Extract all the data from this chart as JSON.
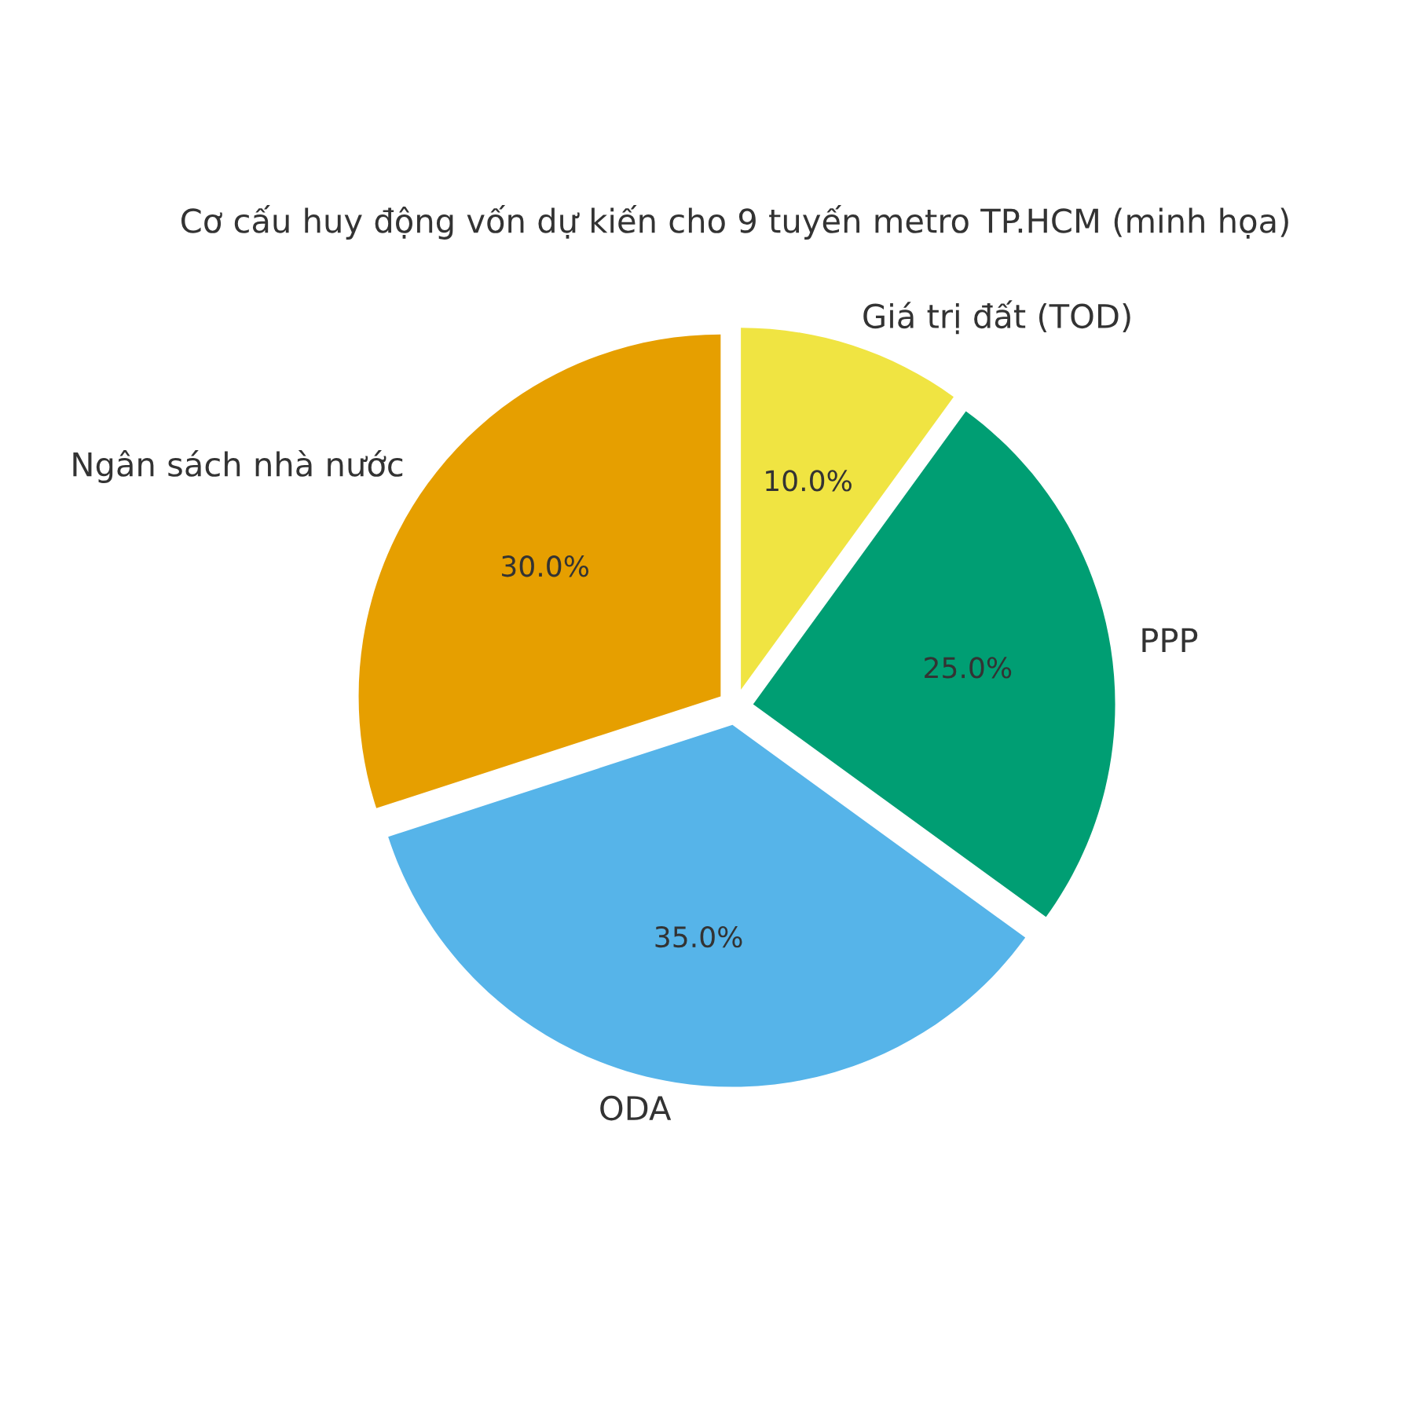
{
  "chart_data": {
    "type": "pie",
    "title": "Cơ cấu huy động vốn dự kiến cho 9 tuyến metro TP.HCM (minh họa)",
    "categories": [
      "Ngân sách nhà nước",
      "ODA",
      "PPP",
      "Giá trị đất (TOD)"
    ],
    "values": [
      30,
      35,
      25,
      10
    ],
    "colors": [
      "#e69f00",
      "#56b4e9",
      "#009e73",
      "#f0e442"
    ],
    "value_labels": [
      "30.0%",
      "35.0%",
      "25.0%",
      "10.0%"
    ]
  }
}
